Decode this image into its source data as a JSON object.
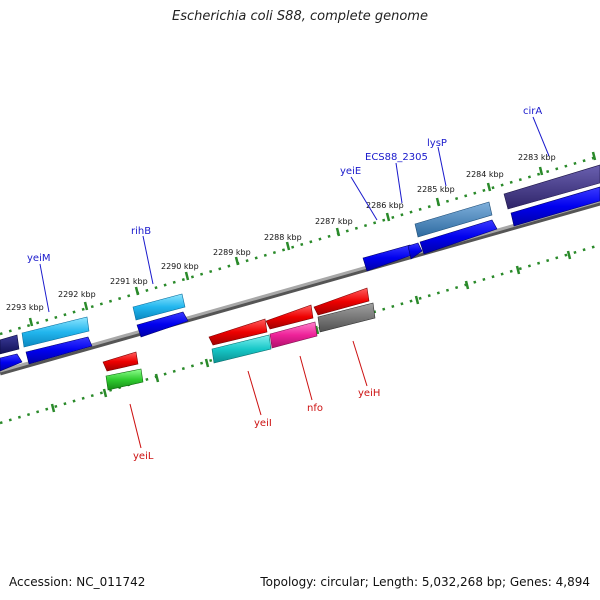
{
  "title": "Escherichia coli S88, complete genome",
  "footer": {
    "accession": "Accession: NC_011742",
    "stats": "Topology: circular; Length: 5,032,268 bp; Genes: 4,894"
  },
  "colors": {
    "forward_label": "#1a1acc",
    "reverse_label": "#cc1111",
    "tick_ring": "#2a8a2a",
    "backbone": "#888888"
  },
  "kbp_labels": [
    "2283 kbp",
    "2284 kbp",
    "2285 kbp",
    "2286 kbp",
    "2287 kbp",
    "2288 kbp",
    "2289 kbp",
    "2290 kbp",
    "2291 kbp",
    "2292 kbp",
    "2293 kbp"
  ],
  "genes_forward": [
    "cirA",
    "lysP",
    "ECS88_2305",
    "yeiE",
    "rihB",
    "yeiM"
  ],
  "genes_reverse": [
    "yeiH",
    "nfo",
    "yeiI",
    "yeiL"
  ]
}
